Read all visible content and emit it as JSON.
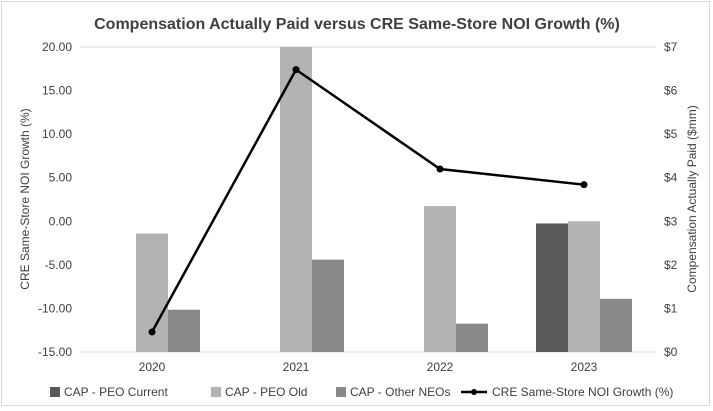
{
  "chart_data": {
    "type": "bar",
    "title": "Compensation Actually Paid versus CRE Same-Store NOI Growth (%)",
    "categories": [
      "2020",
      "2021",
      "2022",
      "2023"
    ],
    "left_axis": {
      "label": "CRE Same-Store NOI Growth (%)",
      "range": [
        -15,
        20
      ],
      "ticks": [
        -15,
        -10,
        -5,
        0,
        5,
        10,
        15,
        20
      ],
      "tick_labels": [
        "-15.00",
        "-10.00",
        "-5.00",
        "0.00",
        "5.00",
        "10.00",
        "15.00",
        "20.00"
      ]
    },
    "right_axis": {
      "label": "Compensation Actually Paid ($mm)",
      "range": [
        0,
        7
      ],
      "ticks": [
        0,
        1,
        2,
        3,
        4,
        5,
        6,
        7
      ],
      "tick_labels": [
        "$0",
        "$1",
        "$2",
        "$3",
        "$4",
        "$5",
        "$6",
        "$7"
      ]
    },
    "bar_series": [
      {
        "name": "CAP - PEO Current",
        "color": "#595959",
        "values": [
          null,
          null,
          null,
          2.95
        ]
      },
      {
        "name": "CAP - PEO Old",
        "color": "#b3b3b3",
        "values": [
          2.72,
          7.0,
          3.35,
          3.0
        ]
      },
      {
        "name": "CAP - Other NEOs",
        "color": "#888888",
        "values": [
          0.97,
          2.12,
          0.65,
          1.22
        ]
      }
    ],
    "line_series": {
      "name": "CRE Same-Store NOI Growth (%)",
      "color": "#000000",
      "values": [
        -12.7,
        17.4,
        6.0,
        4.2
      ]
    },
    "grid": "vertical-none",
    "legend_position": "bottom"
  }
}
